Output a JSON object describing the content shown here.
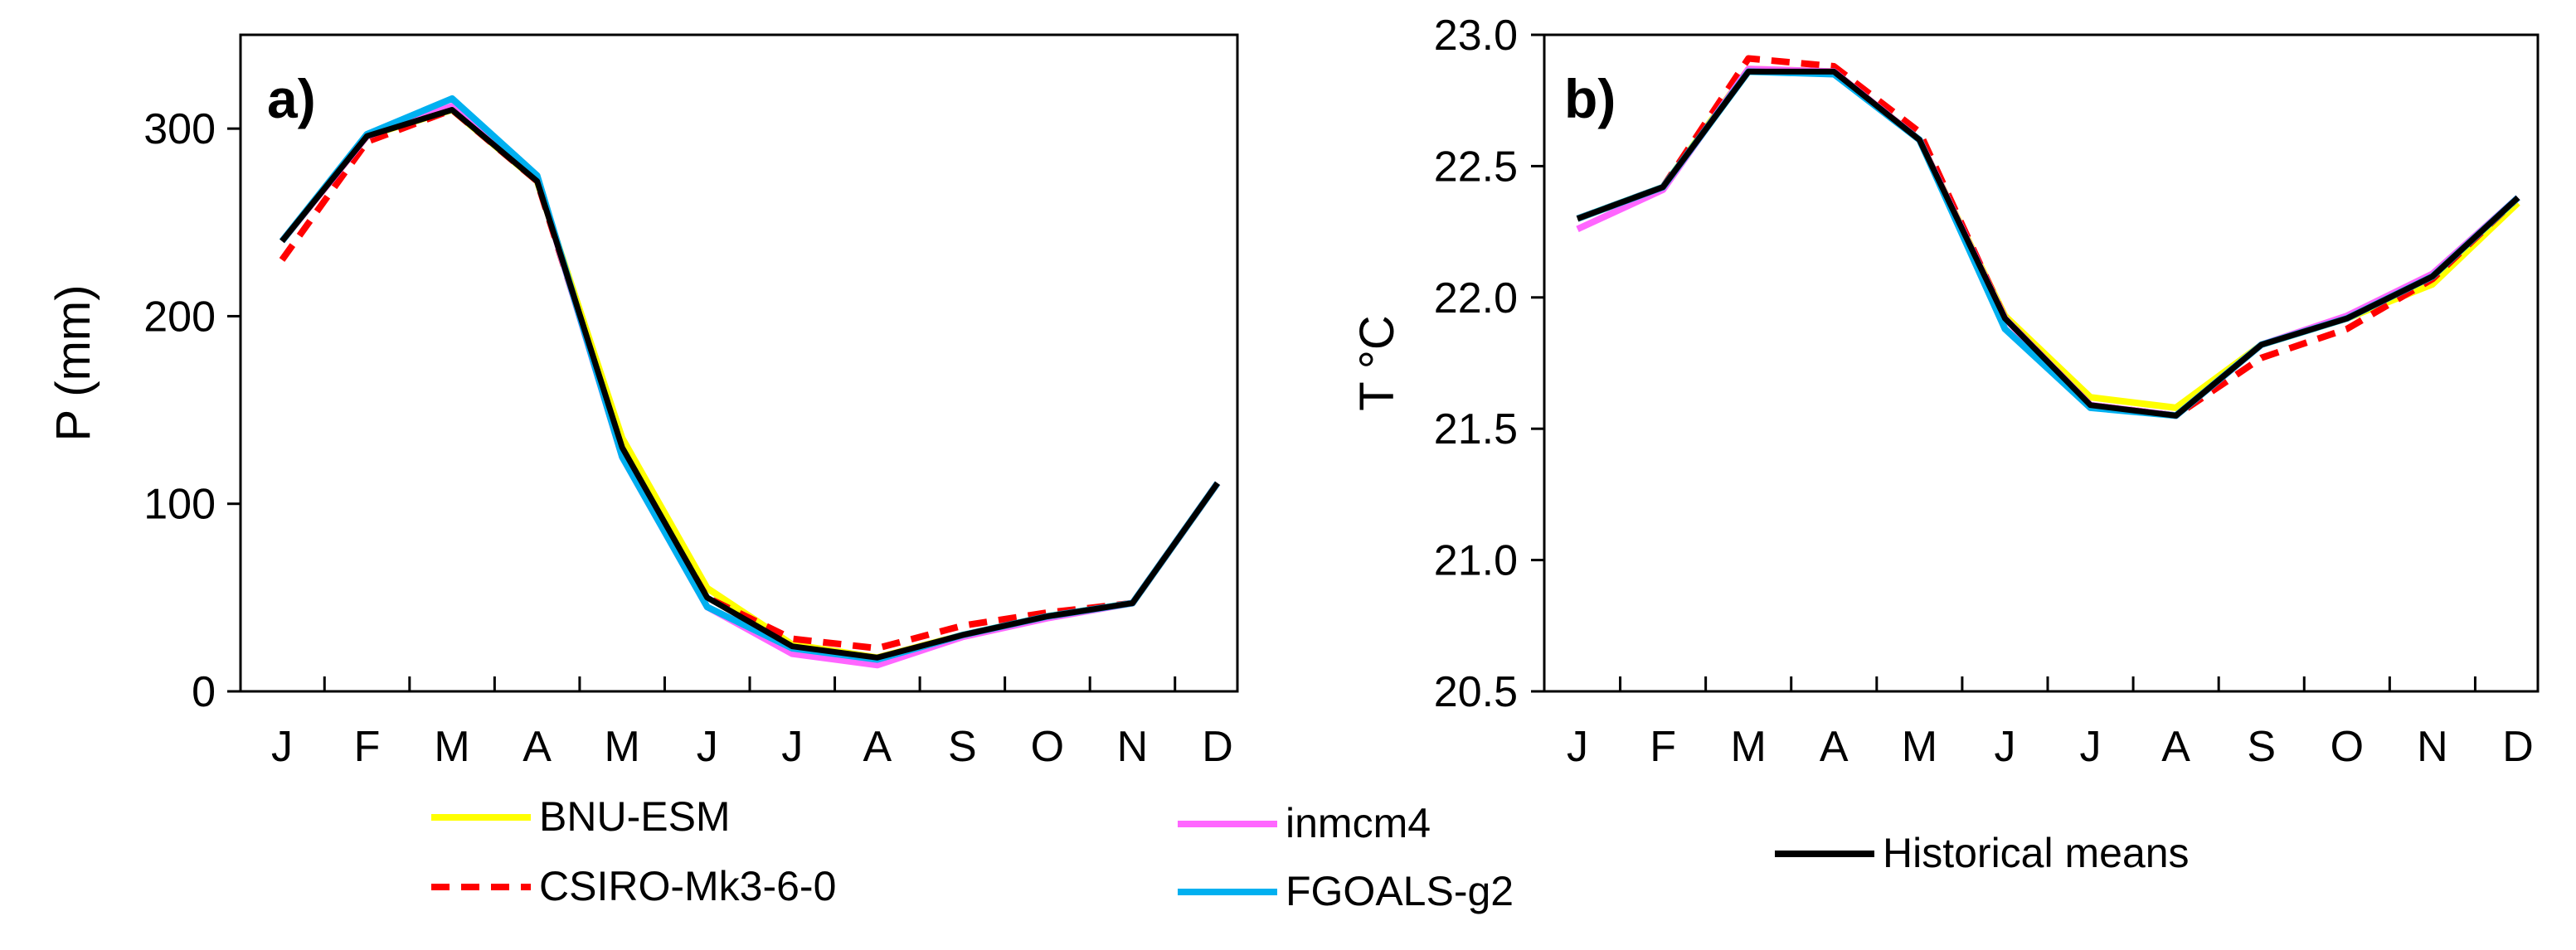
{
  "figure": {
    "legend": [
      {
        "name": "BNU-ESM",
        "color": "#ffff00",
        "dash": "solid"
      },
      {
        "name": "inmcm4",
        "color": "#ff66ff",
        "dash": "solid"
      },
      {
        "name": "Historical means",
        "color": "#000000",
        "dash": "solid"
      },
      {
        "name": "CSIRO-Mk3-6-0",
        "color": "#ff0000",
        "dash": "dashed"
      },
      {
        "name": "FGOALS-g2",
        "color": "#00b0f0",
        "dash": "solid"
      }
    ]
  },
  "chart_data": [
    {
      "type": "line",
      "panel_label": "a)",
      "title": "",
      "xlabel": "",
      "ylabel": "P (mm)",
      "categories": [
        "J",
        "F",
        "M",
        "A",
        "M",
        "J",
        "J",
        "A",
        "S",
        "O",
        "N",
        "D"
      ],
      "ylim": [
        0,
        350
      ],
      "yticks": [
        0,
        100,
        200,
        300
      ],
      "grid": false,
      "series": [
        {
          "name": "BNU-ESM",
          "color": "#ffff00",
          "dash": "solid",
          "values": [
            240,
            296,
            310,
            272,
            135,
            55,
            25,
            18,
            30,
            40,
            47,
            111
          ]
        },
        {
          "name": "CSIRO-Mk3-6-0",
          "color": "#ff0000",
          "dash": "dashed",
          "values": [
            230,
            293,
            310,
            272,
            128,
            50,
            28,
            23,
            35,
            42,
            47,
            111
          ]
        },
        {
          "name": "inmcm4",
          "color": "#ff66ff",
          "dash": "solid",
          "values": [
            240,
            296,
            312,
            274,
            125,
            45,
            20,
            14,
            29,
            39,
            47,
            111
          ]
        },
        {
          "name": "FGOALS-g2",
          "color": "#00b0f0",
          "dash": "solid",
          "values": [
            240,
            297,
            316,
            275,
            125,
            45,
            23,
            17,
            30,
            40,
            47,
            111
          ]
        },
        {
          "name": "Historical means",
          "color": "#000000",
          "dash": "solid",
          "values": [
            240,
            296,
            310,
            272,
            130,
            50,
            24,
            18,
            30,
            40,
            47,
            111
          ]
        }
      ]
    },
    {
      "type": "line",
      "panel_label": "b)",
      "title": "",
      "xlabel": "",
      "ylabel": "T °C",
      "categories": [
        "J",
        "F",
        "M",
        "A",
        "M",
        "J",
        "J",
        "A",
        "S",
        "O",
        "N",
        "D"
      ],
      "ylim": [
        20.5,
        23.0
      ],
      "yticks": [
        "20.5",
        "21.0",
        "21.5",
        "22.0",
        "22.5",
        "23.0"
      ],
      "grid": false,
      "series": [
        {
          "name": "BNU-ESM",
          "color": "#ffff00",
          "dash": "solid",
          "values": [
            22.3,
            22.42,
            22.87,
            22.86,
            22.6,
            21.93,
            21.62,
            21.58,
            21.82,
            21.92,
            22.05,
            22.36
          ]
        },
        {
          "name": "CSIRO-Mk3-6-0",
          "color": "#ff0000",
          "dash": "dashed",
          "values": [
            22.3,
            22.42,
            22.91,
            22.88,
            22.63,
            21.92,
            21.59,
            21.55,
            21.77,
            21.88,
            22.07,
            22.38
          ]
        },
        {
          "name": "inmcm4",
          "color": "#ff66ff",
          "dash": "solid",
          "values": [
            22.26,
            22.41,
            22.87,
            22.86,
            22.6,
            21.92,
            21.59,
            21.55,
            21.82,
            21.93,
            22.09,
            22.38
          ]
        },
        {
          "name": "FGOALS-g2",
          "color": "#00b0f0",
          "dash": "solid",
          "values": [
            22.3,
            22.42,
            22.86,
            22.85,
            22.6,
            21.88,
            21.58,
            21.55,
            21.82,
            21.92,
            22.08,
            22.38
          ]
        },
        {
          "name": "Historical means",
          "color": "#000000",
          "dash": "solid",
          "values": [
            22.3,
            22.42,
            22.86,
            22.86,
            22.6,
            21.92,
            21.59,
            21.55,
            21.82,
            21.92,
            22.08,
            22.38
          ]
        }
      ]
    }
  ]
}
